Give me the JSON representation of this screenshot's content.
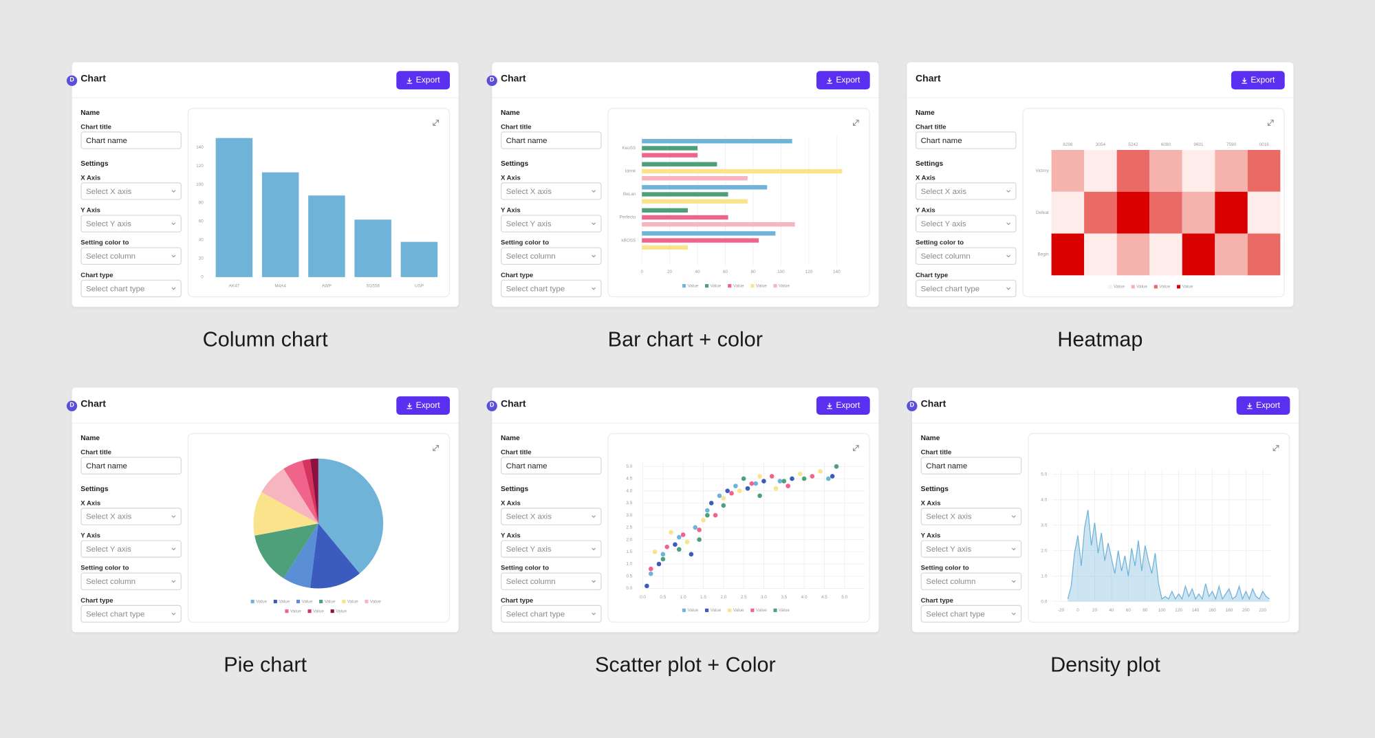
{
  "cards": [
    {
      "logo": "D",
      "title": "Chart",
      "export": "Export",
      "caption": "Column chart",
      "form": {
        "sections": [
          {
            "title": "Name",
            "fields": [
              {
                "label": "Chart title",
                "value": "Chart name",
                "control": "input"
              }
            ]
          },
          {
            "title": "Settings",
            "fields": [
              {
                "label": "X Axis",
                "value": "Select X axis",
                "control": "select"
              },
              {
                "label": "Y Axis",
                "value": "Select Y axis",
                "control": "select"
              },
              {
                "label": "Setting color to",
                "value": "Select column",
                "control": "select"
              },
              {
                "label": "Chart type",
                "value": "Select chart type",
                "control": "select"
              }
            ]
          }
        ]
      },
      "chart_data": {
        "type": "column",
        "categories": [
          "AK47",
          "M4A4",
          "AWP",
          "SG556",
          "USP"
        ],
        "values": [
          150,
          113,
          88,
          62,
          38
        ],
        "color": "#6fb3d9",
        "ylim": [
          0,
          150
        ],
        "yticks": [
          0,
          20,
          40,
          60,
          80,
          100,
          120,
          140
        ]
      }
    },
    {
      "logo": "D",
      "title": "Chart",
      "export": "Export",
      "caption": "Bar chart + color",
      "form": {
        "sections": [
          {
            "title": "Name",
            "fields": [
              {
                "label": "Chart title",
                "value": "Chart name",
                "control": "input"
              }
            ]
          },
          {
            "title": "Settings",
            "fields": [
              {
                "label": "X Axis",
                "value": "Select X axis",
                "control": "select"
              },
              {
                "label": "Y Axis",
                "value": "Select Y axis",
                "control": "select"
              },
              {
                "label": "Setting color to",
                "value": "Select column",
                "control": "select"
              },
              {
                "label": "Chart type",
                "value": "Select chart type",
                "control": "select"
              }
            ]
          }
        ]
      },
      "chart_data": {
        "type": "hbar",
        "categories": [
          "KeoSS",
          "Idrink",
          "BeLan",
          "Perfecto",
          "kBOSS"
        ],
        "series": [
          {
            "name": "Value",
            "color": "#6fb3d9",
            "values": [
              108,
              null,
              90,
              null,
              96
            ]
          },
          {
            "name": "Value",
            "color": "#4ea07a",
            "values": [
              40,
              54,
              62,
              33,
              null
            ]
          },
          {
            "name": "Value",
            "color": "#f0648c",
            "values": [
              40,
              null,
              null,
              62,
              84
            ]
          },
          {
            "name": "Value",
            "color": "#fbe38b",
            "values": [
              null,
              144,
              76,
              null,
              33
            ]
          },
          {
            "name": "Value",
            "color": "#f7b6bf",
            "values": [
              null,
              76,
              null,
              110,
              null
            ]
          }
        ],
        "xlim": [
          0,
          150
        ],
        "xticks": [
          0,
          20,
          40,
          60,
          80,
          100,
          120,
          140
        ],
        "grid": true
      }
    },
    {
      "title": "Chart",
      "export": "Export",
      "caption": "Heatmap",
      "form": {
        "sections": [
          {
            "title": "Name",
            "fields": [
              {
                "label": "Chart title",
                "value": "Chart name",
                "control": "input"
              }
            ]
          },
          {
            "title": "Settings",
            "fields": [
              {
                "label": "X Axis",
                "value": "Select X axis",
                "control": "select"
              },
              {
                "label": "Y Axis",
                "value": "Select Y axis",
                "control": "select"
              },
              {
                "label": "Setting color to",
                "value": "Select column",
                "control": "select"
              },
              {
                "label": "Chart type",
                "value": "Select chart type",
                "control": "select"
              }
            ]
          }
        ]
      },
      "chart_data": {
        "type": "heatmap",
        "x_categories": [
          "8298",
          "3054",
          "5242",
          "6080",
          "9601",
          "7590",
          "0016"
        ],
        "y_categories": [
          "Victory",
          "Defeat",
          "Begin"
        ],
        "values": [
          [
            2,
            1,
            3,
            2,
            1,
            2,
            3
          ],
          [
            1,
            3,
            4,
            3,
            2,
            4,
            1
          ],
          [
            4,
            1,
            2,
            1,
            4,
            2,
            3
          ]
        ],
        "legend": [
          {
            "name": "Value",
            "color": "#fdecea"
          },
          {
            "name": "Value",
            "color": "#f6b3ae"
          },
          {
            "name": "Value",
            "color": "#ea6a66"
          },
          {
            "name": "Value",
            "color": "#d90000"
          }
        ]
      }
    },
    {
      "logo": "D",
      "title": "Chart",
      "export": "Export",
      "caption": "Pie chart",
      "form": {
        "sections": [
          {
            "title": "Name",
            "fields": [
              {
                "label": "Chart title",
                "value": "Chart name",
                "control": "input"
              }
            ]
          },
          {
            "title": "Settings",
            "fields": [
              {
                "label": "X Axis",
                "value": "Select X axis",
                "control": "select"
              },
              {
                "label": "Y Axis",
                "value": "Select Y axis",
                "control": "select"
              },
              {
                "label": "Setting color to",
                "value": "Select column",
                "control": "select"
              },
              {
                "label": "Chart type",
                "value": "Select chart type",
                "control": "select"
              }
            ]
          }
        ]
      },
      "chart_data": {
        "type": "pie",
        "categories": [
          "Value",
          "Value",
          "Value",
          "Value",
          "Value",
          "Value",
          "Value",
          "Value",
          "Value"
        ],
        "values": [
          39,
          13,
          7,
          13,
          11,
          8,
          5,
          2,
          2
        ],
        "colors": [
          "#6fb3d9",
          "#3b5bbf",
          "#5a8fd6",
          "#4ea07a",
          "#fbe38b",
          "#f7b6bf",
          "#f0648c",
          "#d6335f",
          "#8c1040"
        ]
      }
    },
    {
      "logo": "D",
      "title": "Chart",
      "export": "Export",
      "caption": "Scatter plot + Color",
      "form": {
        "sections": [
          {
            "title": "Name",
            "fields": [
              {
                "label": "Chart title",
                "value": "Chart name",
                "control": "input"
              }
            ]
          },
          {
            "title": "Settings",
            "fields": [
              {
                "label": "X Axis",
                "value": "Select X axis",
                "control": "select"
              },
              {
                "label": "Y Axis",
                "value": "Select Y axis",
                "control": "select"
              },
              {
                "label": "Setting color to",
                "value": "Select column",
                "control": "select"
              },
              {
                "label": "Chart type",
                "value": "Select chart type",
                "control": "select"
              }
            ]
          }
        ]
      },
      "chart_data": {
        "type": "scatter",
        "series": [
          {
            "name": "Value",
            "color": "#6fb3d9",
            "x": [
              0.2,
              0.5,
              0.9,
              1.3,
              1.6,
              1.9,
              2.3,
              2.8,
              3.4,
              4.6
            ],
            "values": [
              0.6,
              1.4,
              2.1,
              2.5,
              3.2,
              3.8,
              4.2,
              4.3,
              4.4,
              4.5
            ]
          },
          {
            "name": "Value",
            "color": "#3b5bbf",
            "x": [
              0.1,
              0.4,
              0.8,
              1.2,
              1.7,
              2.1,
              2.6,
              3.0,
              3.7,
              4.7
            ],
            "values": [
              0.1,
              1.0,
              1.8,
              1.4,
              3.5,
              4.0,
              4.1,
              4.4,
              4.5,
              4.6
            ]
          },
          {
            "name": "Value",
            "color": "#fbe38b",
            "x": [
              0.3,
              0.7,
              1.1,
              1.5,
              2.0,
              2.4,
              2.9,
              3.3,
              3.9,
              4.4
            ],
            "values": [
              1.5,
              2.3,
              1.9,
              2.8,
              3.7,
              4.0,
              4.6,
              4.1,
              4.7,
              4.8
            ]
          },
          {
            "name": "Value",
            "color": "#f0648c",
            "x": [
              0.2,
              0.6,
              1.0,
              1.4,
              1.8,
              2.2,
              2.7,
              3.2,
              3.6,
              4.2
            ],
            "values": [
              0.8,
              1.7,
              2.2,
              2.4,
              3.0,
              3.9,
              4.3,
              4.6,
              4.2,
              4.6
            ]
          },
          {
            "name": "Value",
            "color": "#4ea07a",
            "x": [
              0.5,
              0.9,
              1.4,
              1.6,
              2.0,
              2.5,
              2.9,
              3.5,
              4.0,
              4.8
            ],
            "values": [
              1.2,
              1.6,
              2.0,
              3.0,
              3.4,
              4.5,
              3.8,
              4.4,
              4.5,
              5.0
            ]
          }
        ],
        "xlim": [
          0,
          5.5
        ],
        "ylim": [
          0,
          5.2
        ],
        "xticks": [
          {
            "value": 0,
            "label": "0.0"
          },
          0.5,
          {
            "value": 1,
            "label": "1.0"
          },
          1.5,
          {
            "value": 2,
            "label": "2.0"
          },
          2.5,
          {
            "value": 3,
            "label": "3.0"
          },
          3.5,
          {
            "value": 4,
            "label": "4.0"
          },
          4.5,
          {
            "value": 5,
            "label": "5.0"
          }
        ],
        "yticks": [
          {
            "value": 0,
            "label": "0.0"
          },
          0.5,
          {
            "value": 1,
            "label": "1.0"
          },
          1.5,
          {
            "value": 2,
            "label": "2.0"
          },
          2.5,
          {
            "value": 3,
            "label": "3.0"
          },
          3.5,
          {
            "value": 4,
            "label": "4.0"
          },
          4.5,
          {
            "value": 5,
            "label": "5.0"
          }
        ],
        "grid": true
      }
    },
    {
      "logo": "D",
      "title": "Chart",
      "export": "Export",
      "caption": "Density plot",
      "form": {
        "sections": [
          {
            "title": "Name",
            "fields": [
              {
                "label": "Chart title",
                "value": "Chart name",
                "control": "input"
              }
            ]
          },
          {
            "title": "Settings",
            "fields": [
              {
                "label": "X Axis",
                "value": "Select X axis",
                "control": "select"
              },
              {
                "label": "Y Axis",
                "value": "Select Y axis",
                "control": "select"
              },
              {
                "label": "Setting color to",
                "value": "Select column",
                "control": "select"
              },
              {
                "label": "Chart type",
                "value": "Select chart type",
                "control": "select"
              }
            ]
          }
        ]
      },
      "chart_data": {
        "type": "density",
        "color": "#6fb3d9",
        "x": [
          -12,
          -8,
          -4,
          0,
          4,
          8,
          12,
          16,
          20,
          24,
          28,
          32,
          36,
          40,
          44,
          48,
          52,
          56,
          60,
          64,
          68,
          72,
          76,
          80,
          84,
          88,
          92,
          96,
          100,
          104,
          108,
          112,
          116,
          120,
          124,
          128,
          132,
          136,
          140,
          144,
          148,
          152,
          156,
          160,
          164,
          168,
          172,
          176,
          180,
          184,
          188,
          192,
          196,
          200,
          204,
          208,
          212,
          216,
          220,
          224,
          228
        ],
        "values": [
          0.1,
          0.6,
          1.9,
          2.6,
          1.4,
          2.9,
          3.6,
          2.2,
          3.1,
          1.9,
          2.7,
          1.6,
          2.3,
          1.7,
          1.1,
          2.0,
          1.2,
          1.8,
          1.0,
          2.1,
          1.4,
          2.4,
          1.2,
          2.2,
          1.6,
          1.1,
          1.9,
          0.7,
          0.1,
          0.2,
          0.1,
          0.4,
          0.1,
          0.3,
          0.1,
          0.6,
          0.2,
          0.5,
          0.1,
          0.3,
          0.1,
          0.7,
          0.2,
          0.4,
          0.1,
          0.6,
          0.1,
          0.3,
          0.5,
          0.1,
          0.2,
          0.6,
          0.1,
          0.4,
          0.1,
          0.5,
          0.2,
          0.1,
          0.4,
          0.2,
          0.1
        ],
        "xlim": [
          -30,
          230
        ],
        "ylim": [
          0,
          5.2
        ],
        "xticks": [
          -20,
          0,
          20,
          40,
          60,
          80,
          100,
          120,
          140,
          160,
          180,
          200,
          220
        ],
        "yticks": [
          {
            "value": 0,
            "label": "0.0"
          },
          {
            "value": 1,
            "label": "1.0"
          },
          {
            "value": 2,
            "label": "2.0"
          },
          {
            "value": 3,
            "label": "3.0"
          },
          {
            "value": 4,
            "label": "4.0"
          },
          {
            "value": 5,
            "label": "5.0"
          }
        ],
        "grid": true
      }
    }
  ]
}
